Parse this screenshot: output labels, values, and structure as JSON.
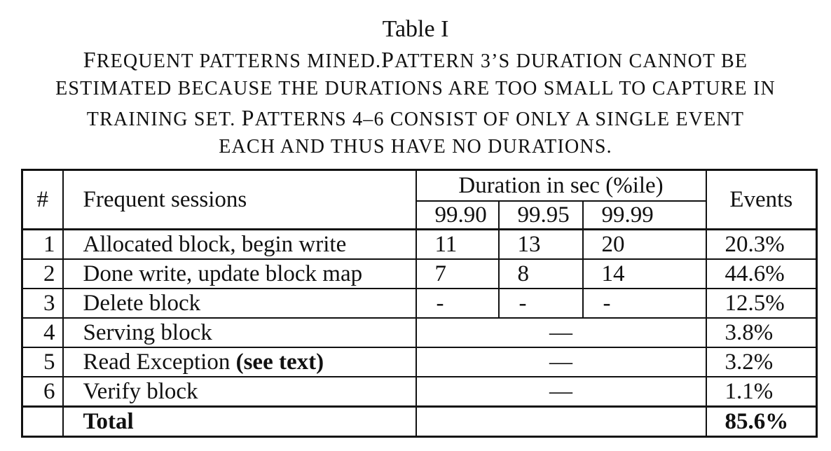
{
  "caption": {
    "title": "Table I",
    "lines": [
      {
        "c1": "F",
        "t1": "REQUENT PATTERNS MINED.",
        "c2": "P",
        "t2": "ATTERN 3’S DURATION CANNOT BE"
      },
      {
        "c1": "",
        "t1": "ESTIMATED BECAUSE THE DURATIONS ARE TOO SMALL TO CAPTURE IN",
        "c2": "",
        "t2": ""
      },
      {
        "c1": "",
        "t1": "TRAINING SET. ",
        "c2": "P",
        "t2": "ATTERNS 4–6 CONSIST OF ONLY A SINGLE EVENT"
      },
      {
        "c1": "",
        "t1": "EACH AND THUS HAVE NO DURATIONS.",
        "c2": "",
        "t2": ""
      }
    ]
  },
  "table": {
    "headers": {
      "num": "#",
      "sessions": "Frequent sessions",
      "duration": "Duration in sec (%ile)",
      "percentiles": [
        "99.90",
        "99.95",
        "99.99"
      ],
      "events": "Events"
    },
    "rows": [
      {
        "num": "1",
        "session": "Allocated block, begin write",
        "session_bold": "",
        "d1": "11",
        "d2": "13",
        "d3": "20",
        "events": "20.3%"
      },
      {
        "num": "2",
        "session": "Done write, update block map",
        "session_bold": "",
        "d1": "7",
        "d2": "8",
        "d3": "14",
        "events": "44.6%"
      },
      {
        "num": "3",
        "session": "Delete block",
        "session_bold": "",
        "d1": "-",
        "d2": "-",
        "d3": "-",
        "events": "12.5%"
      },
      {
        "num": "4",
        "session": "Serving block",
        "session_bold": "",
        "merged": "—",
        "events": "3.8%"
      },
      {
        "num": "5",
        "session": "Read Exception ",
        "session_bold": "(see text)",
        "merged": "—",
        "events": "3.2%"
      },
      {
        "num": "6",
        "session": "Verify block",
        "session_bold": "",
        "merged": "—",
        "events": "1.1%"
      }
    ],
    "total": {
      "label": "Total",
      "events": "85.6%"
    }
  }
}
